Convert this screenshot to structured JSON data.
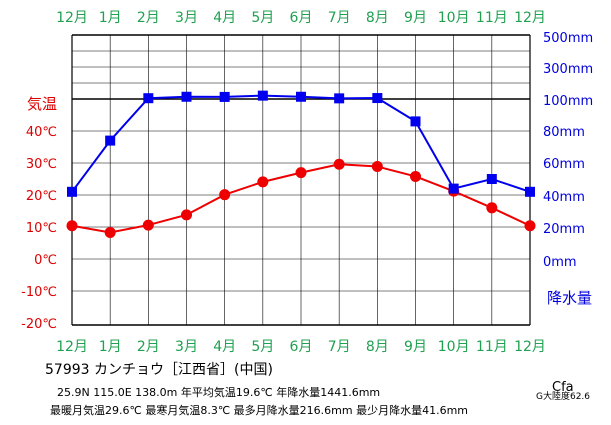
{
  "chart_data": {
    "type": "line",
    "categories": [
      "12月",
      "1月",
      "2月",
      "3月",
      "4月",
      "5月",
      "6月",
      "7月",
      "8月",
      "9月",
      "10月",
      "11月",
      "12月"
    ],
    "series": [
      {
        "name": "気温",
        "unit": "℃",
        "color": "#ee0000",
        "values": [
          10.4,
          8.3,
          10.6,
          13.8,
          20.1,
          24.1,
          27.0,
          29.6,
          28.9,
          25.8,
          21.2,
          16.0,
          10.4
        ]
      },
      {
        "name": "降水量",
        "unit": "mm",
        "color": "#0000ee",
        "values": [
          42.0,
          74.0,
          105.0,
          114.0,
          113.0,
          121.0,
          114.0,
          104.0,
          106.0,
          86.0,
          44.0,
          50.0,
          42.0
        ]
      }
    ],
    "temp_axis": {
      "label": "気温",
      "ticks": [
        "40℃",
        "30℃",
        "20℃",
        "10℃",
        "0℃",
        "-10℃",
        "-20℃"
      ]
    },
    "precip_axis": {
      "label": "降水量",
      "ticks": [
        "500mm",
        "300mm",
        "100mm",
        "80mm",
        "60mm",
        "40mm",
        "20mm",
        "0mm"
      ]
    },
    "grid": true
  },
  "station": {
    "title": "57993 カンチョウ［江西省］(中国)",
    "line1": "25.9N  115.0E  138.0m 年平均気温19.6℃ 年降水量1441.6mm",
    "line2": "最暖月気温29.6℃ 最寒月気温8.3℃ 最多月降水量216.6mm 最少月降水量41.6mm",
    "climate": "Cfa",
    "continentality": "G大陸度62.6"
  },
  "colors": {
    "month_label": "#20a050",
    "temp_axis": "#dd0000",
    "precip_axis": "#0000dd",
    "grid": "#000000"
  }
}
